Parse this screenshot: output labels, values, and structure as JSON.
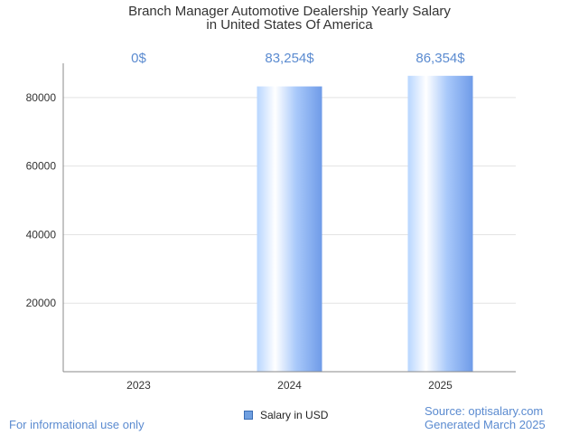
{
  "chart_data": {
    "type": "bar",
    "title_lines": [
      "Branch Manager Automotive Dealership Yearly Salary",
      "in United States Of America"
    ],
    "categories": [
      "2023",
      "2024",
      "2025"
    ],
    "series": [
      {
        "name": "Salary in USD",
        "values": [
          0,
          83254,
          86354
        ],
        "data_labels": [
          "0$",
          "83,254$",
          "86,354$"
        ]
      }
    ],
    "y_ticks": [
      "20000",
      "40000",
      "60000",
      "80000"
    ],
    "ylim": [
      0,
      90000
    ],
    "grid": true,
    "legend_position": "bottom-center",
    "colors": {
      "bar_light": "#ffffff",
      "bar_mid": "#b8d6ff",
      "bar_dark": "#6f9be8",
      "label": "#5b8bd0"
    }
  },
  "footer": {
    "left": "For informational use only",
    "source": "Source: optisalary.com",
    "generated": "Generated March 2025"
  }
}
